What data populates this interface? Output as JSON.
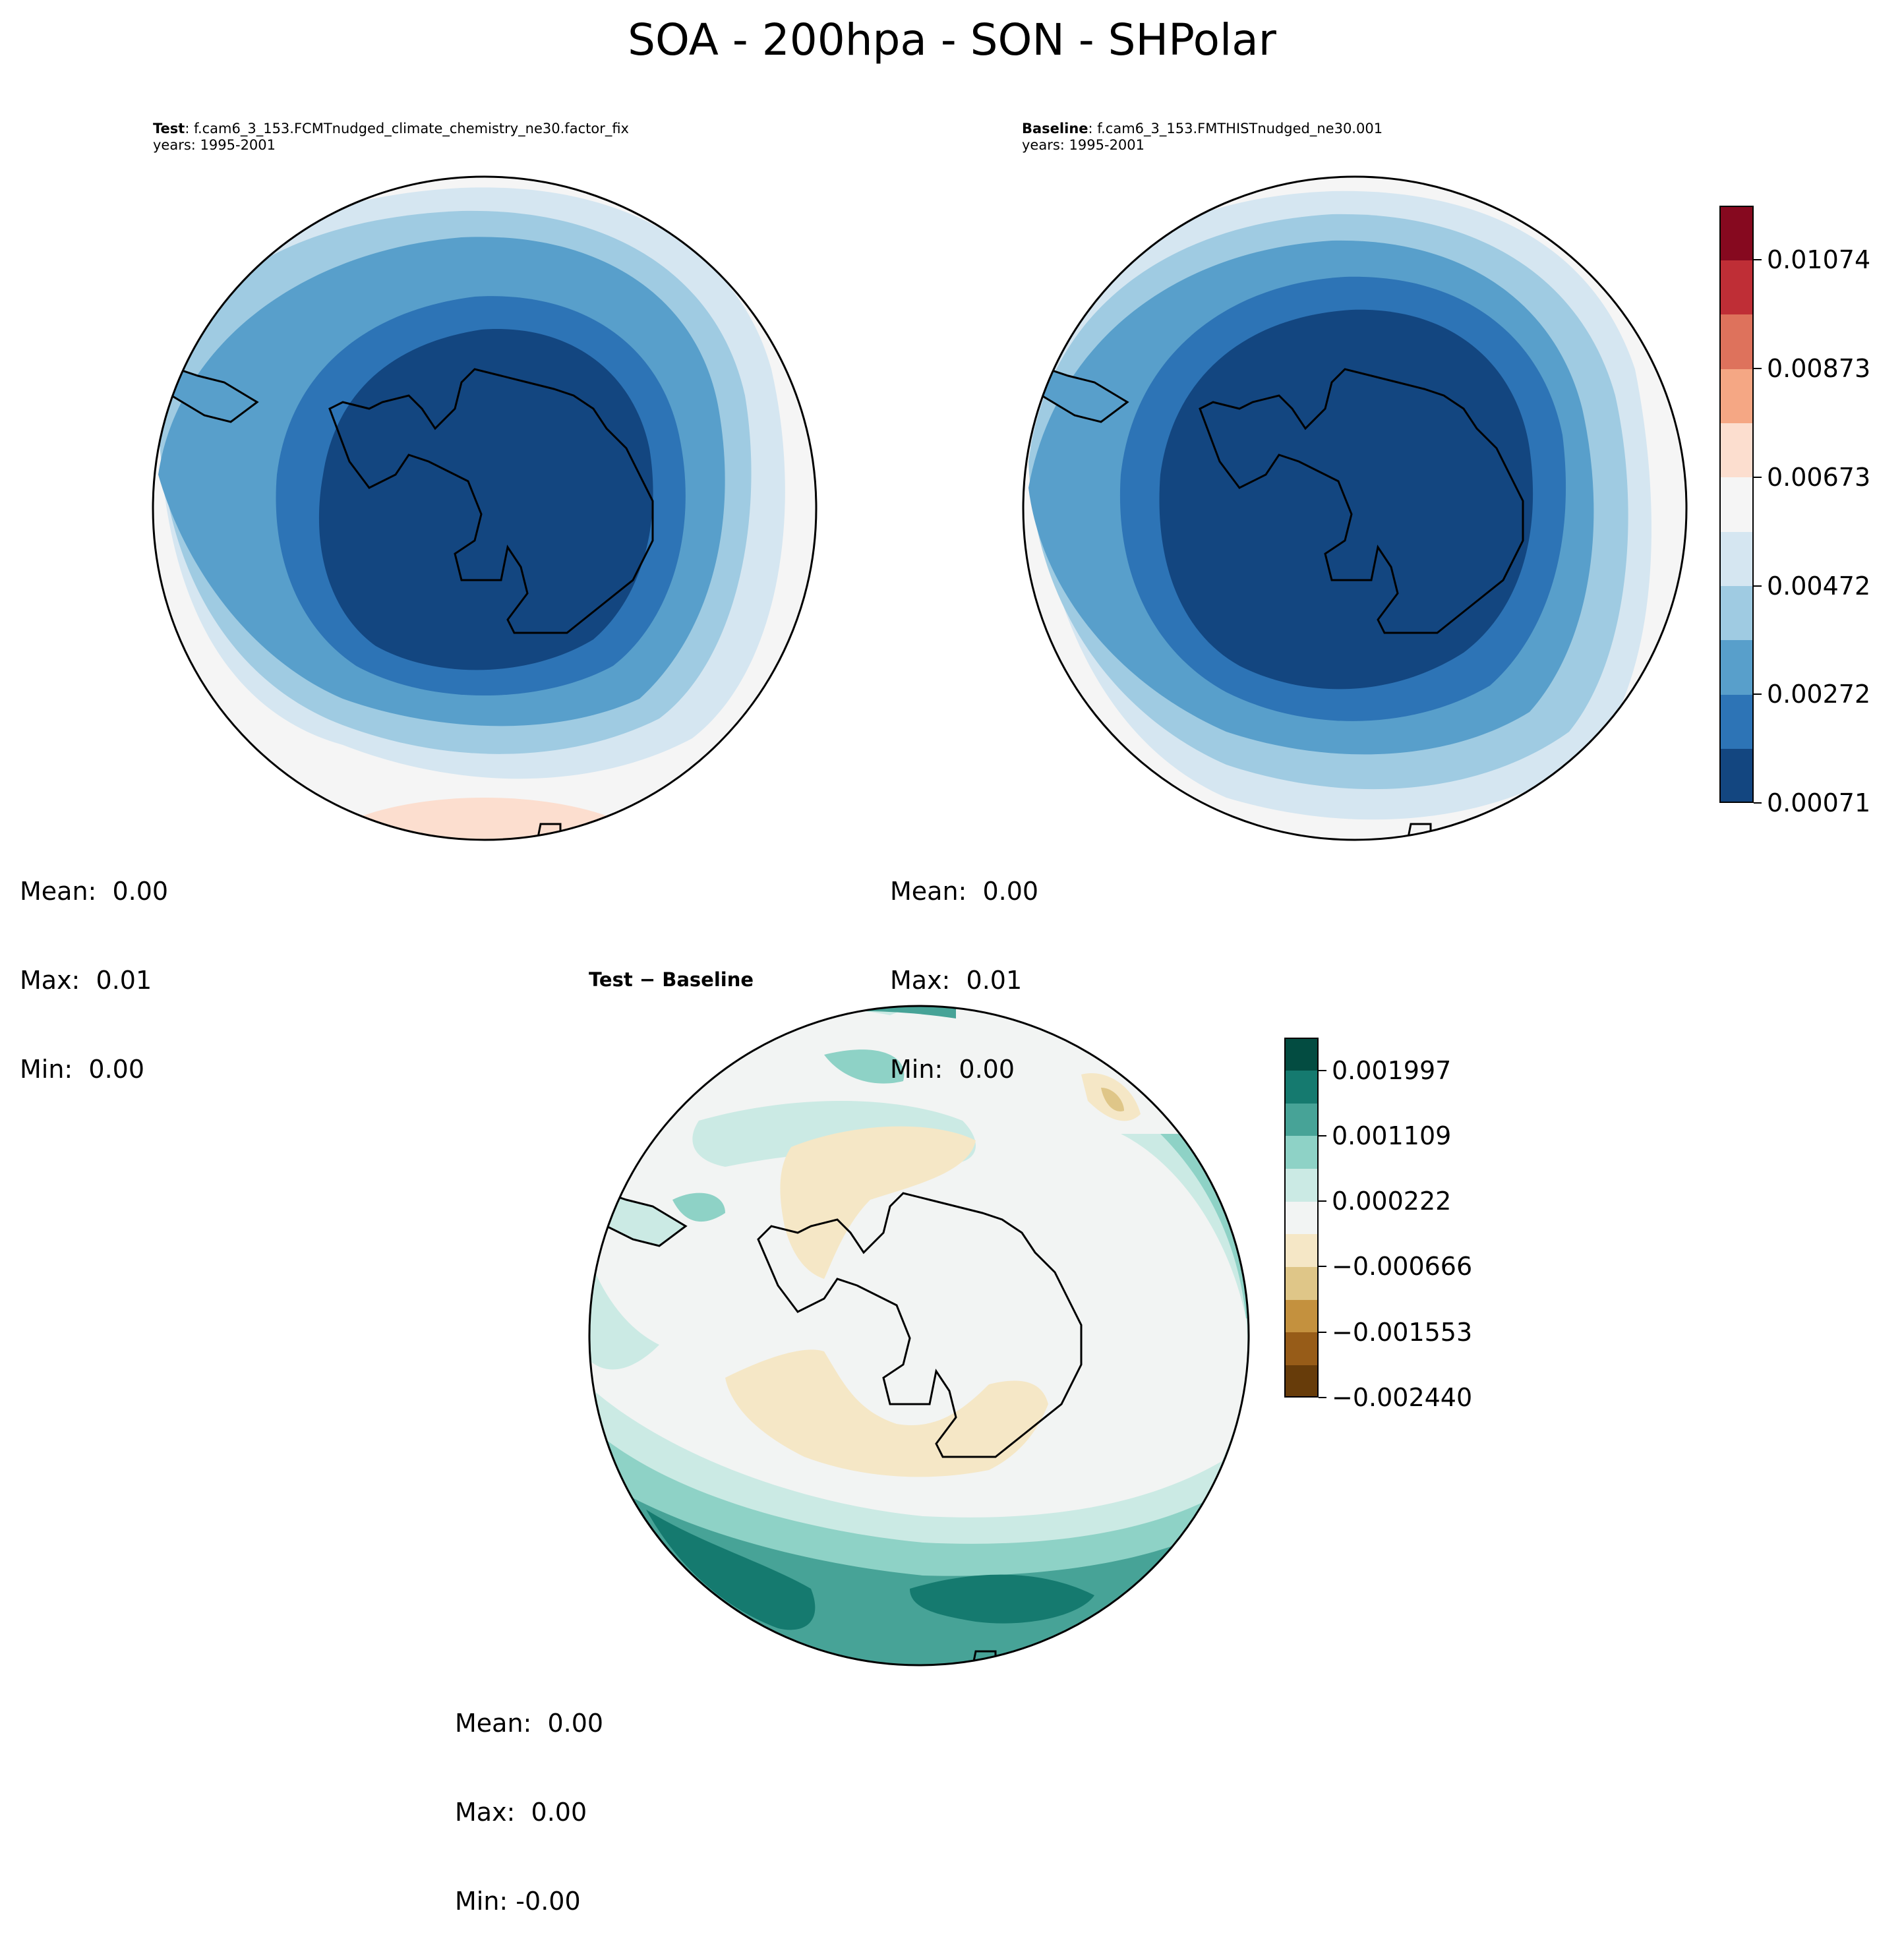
{
  "figure": {
    "title": "SOA - 200hpa - SON - SHPolar"
  },
  "panels": {
    "test": {
      "label": "Test",
      "case": ": f.cam6_3_153.FCMTnudged_climate_chemistry_ne30.factor_fix",
      "years": "years: 1995-2001",
      "stats": [
        "Mean:  0.00",
        "Max:  0.01",
        "Min:  0.00"
      ]
    },
    "baseline": {
      "label": "Baseline",
      "case": ": f.cam6_3_153.FMTHISTnudged_ne30.001",
      "years": "years: 1995-2001",
      "stats": [
        "Mean:  0.00",
        "Max:  0.01",
        "Min:  0.00"
      ]
    },
    "diff": {
      "title": "Test − Baseline",
      "stats": [
        "Mean:  0.00",
        "Max:  0.00",
        "Min: -0.00"
      ]
    }
  },
  "colorbars": {
    "main": {
      "colors": [
        "#134680",
        "#2d74b6",
        "#589fcb",
        "#9fcbe2",
        "#d5e6f1",
        "#f5f5f5",
        "#fcdecf",
        "#f5a784",
        "#de725c",
        "#bf2e36",
        "#86091f"
      ],
      "tick_labels": [
        "0.00071",
        "0.00272",
        "0.00472",
        "0.00673",
        "0.00873",
        "0.01074"
      ]
    },
    "diff": {
      "colors": [
        "#673c0a",
        "#975c18",
        "#c4913e",
        "#dfc688",
        "#f5e7c6",
        "#f2f4f3",
        "#cbeae4",
        "#8ed2c6",
        "#47a397",
        "#157a6f",
        "#034c41"
      ],
      "tick_labels": [
        "−0.002440",
        "−0.001553",
        "−0.000666",
        "0.000222",
        "0.001109",
        "0.001997"
      ]
    }
  },
  "chart_data": [
    {
      "type": "heatmap",
      "projection": "south polar stereographic",
      "title": "Test: f.cam6_3_153.FCMTnudged_climate_chemistry_ne30.factor_fix",
      "variable": "SOA",
      "level": "200hpa",
      "season": "SON",
      "region": "SHPolar",
      "colorbar_ticks": [
        0.00071,
        0.00272,
        0.00472,
        0.00673,
        0.00873,
        0.01074
      ],
      "mean": 0.0,
      "max": 0.01,
      "min": 0.0
    },
    {
      "type": "heatmap",
      "projection": "south polar stereographic",
      "title": "Baseline: f.cam6_3_153.FMTHISTnudged_ne30.001",
      "variable": "SOA",
      "level": "200hpa",
      "season": "SON",
      "region": "SHPolar",
      "colorbar_ticks": [
        0.00071,
        0.00272,
        0.00472,
        0.00673,
        0.00873,
        0.01074
      ],
      "mean": 0.0,
      "max": 0.01,
      "min": 0.0
    },
    {
      "type": "heatmap",
      "projection": "south polar stereographic",
      "title": "Test − Baseline",
      "colorbar_ticks": [
        -0.00244,
        -0.001553,
        -0.000666,
        0.000222,
        0.001109,
        0.001997
      ],
      "mean": 0.0,
      "max": 0.0,
      "min": -0.0
    }
  ]
}
